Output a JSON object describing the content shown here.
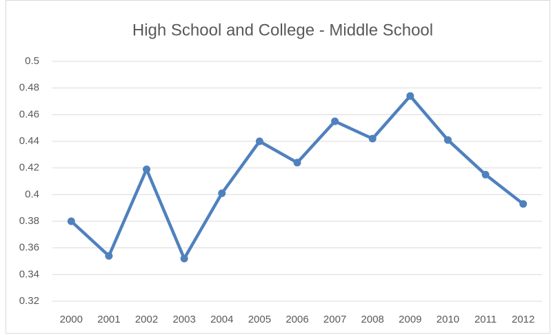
{
  "chart_data": {
    "type": "line",
    "title": "High School and College - Middle School",
    "categories": [
      "2000",
      "2001",
      "2002",
      "2003",
      "2004",
      "2005",
      "2006",
      "2007",
      "2008",
      "2009",
      "2010",
      "2011",
      "2012"
    ],
    "values": [
      0.38,
      0.354,
      0.419,
      0.352,
      0.401,
      0.44,
      0.424,
      0.455,
      0.442,
      0.474,
      0.441,
      0.415,
      0.393
    ],
    "color": "#4f81bd",
    "ylim": [
      0.32,
      0.5
    ],
    "yticks": [
      0.32,
      0.34,
      0.36,
      0.38,
      0.4,
      0.42,
      0.44,
      0.46,
      0.48,
      0.5
    ],
    "grid": true
  }
}
